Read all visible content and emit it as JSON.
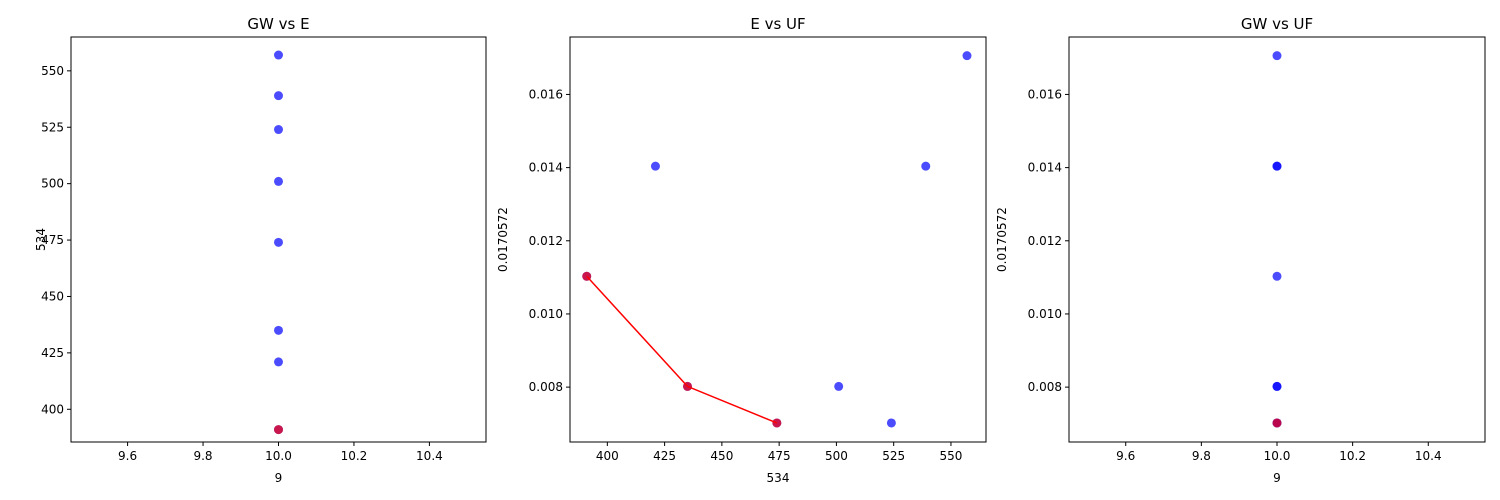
{
  "chart_data": [
    {
      "type": "scatter",
      "title": "GW vs E",
      "xlabel": "9",
      "ylabel": "534",
      "xlim": [
        9.45,
        10.55
      ],
      "ylim": [
        385.5,
        565
      ],
      "xticks": [
        9.6,
        9.8,
        10.0,
        10.2,
        10.4
      ],
      "xtick_labels": [
        "9.6",
        "9.8",
        "10.0",
        "10.2",
        "10.4"
      ],
      "yticks": [
        400,
        425,
        450,
        475,
        500,
        525,
        550
      ],
      "ytick_labels": [
        "400",
        "425",
        "450",
        "475",
        "500",
        "525",
        "550"
      ],
      "grid": false,
      "series": [
        {
          "color": "#0000ff",
          "mode": "markers",
          "points": [
            [
              10,
              557
            ],
            [
              10,
              539
            ],
            [
              10,
              524
            ],
            [
              10,
              501
            ],
            [
              10,
              474
            ],
            [
              10,
              435
            ],
            [
              10,
              421
            ],
            [
              10,
              391
            ]
          ]
        },
        {
          "color": "#ff0000",
          "mode": "markers",
          "points": [
            [
              10,
              391
            ]
          ]
        }
      ]
    },
    {
      "type": "scatter",
      "title": "E vs UF",
      "xlabel": "534",
      "ylabel": "0.0170572",
      "xlim": [
        383.7,
        565.3
      ],
      "ylim": [
        0.0065,
        0.01757
      ],
      "xticks": [
        400,
        425,
        450,
        475,
        500,
        525,
        550
      ],
      "xtick_labels": [
        "400",
        "425",
        "450",
        "475",
        "500",
        "525",
        "550"
      ],
      "yticks": [
        0.008,
        0.01,
        0.012,
        0.014,
        0.016
      ],
      "ytick_labels": [
        "0.008",
        "0.010",
        "0.012",
        "0.014",
        "0.016"
      ],
      "grid": false,
      "series": [
        {
          "color": "#0000ff",
          "mode": "markers",
          "points": [
            [
              391,
              0.01103
            ],
            [
              421,
              0.01404
            ],
            [
              435,
              0.00802
            ],
            [
              474,
              0.00702
            ],
            [
              501,
              0.00802
            ],
            [
              524,
              0.00702
            ],
            [
              539,
              0.01404
            ],
            [
              557,
              0.01706
            ]
          ]
        },
        {
          "color": "#ff0000",
          "mode": "lines+markers",
          "points": [
            [
              391,
              0.01103
            ],
            [
              435,
              0.00802
            ],
            [
              474,
              0.00702
            ]
          ]
        }
      ]
    },
    {
      "type": "scatter",
      "title": "GW vs UF",
      "xlabel": "9",
      "ylabel": "0.0170572",
      "xlim": [
        9.45,
        10.55
      ],
      "ylim": [
        0.0065,
        0.01757
      ],
      "xticks": [
        9.6,
        9.8,
        10.0,
        10.2,
        10.4
      ],
      "xtick_labels": [
        "9.6",
        "9.8",
        "10.0",
        "10.2",
        "10.4"
      ],
      "yticks": [
        0.008,
        0.01,
        0.012,
        0.014,
        0.016
      ],
      "ytick_labels": [
        "0.008",
        "0.010",
        "0.012",
        "0.014",
        "0.016"
      ],
      "grid": false,
      "series": [
        {
          "color": "#0000ff",
          "mode": "markers",
          "points": [
            [
              10,
              0.01706
            ],
            [
              10,
              0.01404
            ],
            [
              10,
              0.01404
            ],
            [
              10,
              0.01103
            ],
            [
              10,
              0.00802
            ],
            [
              10,
              0.00802
            ],
            [
              10,
              0.00702
            ],
            [
              10,
              0.00702
            ]
          ]
        },
        {
          "color": "#ff0000",
          "mode": "markers",
          "points": [
            [
              10,
              0.00702
            ]
          ]
        }
      ]
    }
  ]
}
